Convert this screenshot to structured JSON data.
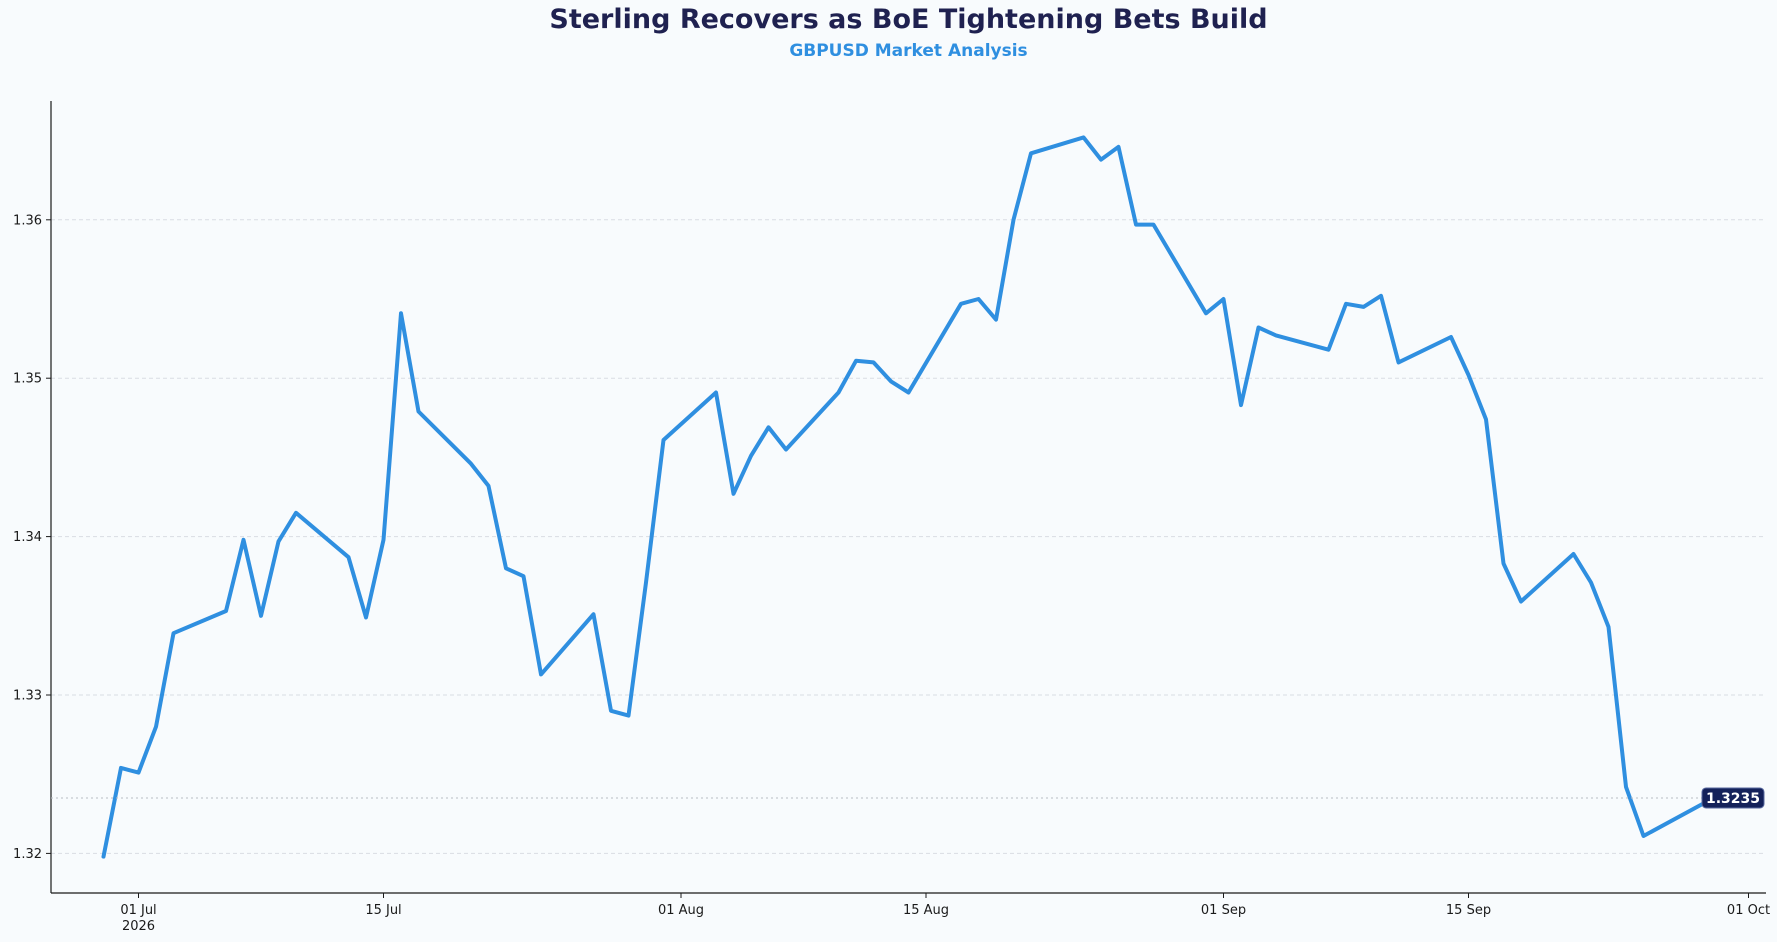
{
  "chart_data": {
    "type": "line",
    "title": "Sterling Recovers as BoE Tightening Bets Build",
    "subtitle": "GBPUSD Market Analysis",
    "xlabel": "",
    "ylabel": "",
    "ylim": [
      1.3175,
      1.3675
    ],
    "xlim": [
      "2026-06-26",
      "2026-10-02"
    ],
    "grid": "horizontal dashed",
    "legend": "none",
    "colors": {
      "line": "#2f8fe0",
      "title": "#1f2150",
      "subtitle": "#2f8fe0",
      "badge": "#14215a",
      "grid": "#d9dde3",
      "background": "#f8fbfd"
    },
    "yticks": [
      {
        "value": 1.32,
        "label": "1.32"
      },
      {
        "value": 1.33,
        "label": "1.33"
      },
      {
        "value": 1.34,
        "label": "1.34"
      },
      {
        "value": 1.35,
        "label": "1.35"
      },
      {
        "value": 1.36,
        "label": "1.36"
      }
    ],
    "xticks": [
      {
        "date": "2026-07-01",
        "label": "01 Jul",
        "sublabel": "2026"
      },
      {
        "date": "2026-07-15",
        "label": "15 Jul",
        "sublabel": ""
      },
      {
        "date": "2026-08-01",
        "label": "01 Aug",
        "sublabel": ""
      },
      {
        "date": "2026-08-15",
        "label": "15 Aug",
        "sublabel": ""
      },
      {
        "date": "2026-09-01",
        "label": "01 Sep",
        "sublabel": ""
      },
      {
        "date": "2026-09-15",
        "label": "15 Sep",
        "sublabel": ""
      },
      {
        "date": "2026-10-01",
        "label": "01 Oct",
        "sublabel": ""
      }
    ],
    "last_value_label": "1.3235",
    "series": [
      {
        "x": [
          "2026-06-29",
          "2026-06-30",
          "2026-07-01",
          "2026-07-02",
          "2026-07-03",
          "2026-07-06",
          "2026-07-07",
          "2026-07-08",
          "2026-07-09",
          "2026-07-10",
          "2026-07-13",
          "2026-07-14",
          "2026-07-15",
          "2026-07-16",
          "2026-07-17",
          "2026-07-20",
          "2026-07-21",
          "2026-07-22",
          "2026-07-23",
          "2026-07-24",
          "2026-07-27",
          "2026-07-28",
          "2026-07-29",
          "2026-07-30",
          "2026-07-31",
          "2026-08-03",
          "2026-08-04",
          "2026-08-05",
          "2026-08-06",
          "2026-08-07",
          "2026-08-10",
          "2026-08-11",
          "2026-08-12",
          "2026-08-13",
          "2026-08-14",
          "2026-08-17",
          "2026-08-18",
          "2026-08-19",
          "2026-08-20",
          "2026-08-21",
          "2026-08-24",
          "2026-08-25",
          "2026-08-26",
          "2026-08-27",
          "2026-08-28",
          "2026-08-31",
          "2026-09-01",
          "2026-09-02",
          "2026-09-03",
          "2026-09-04",
          "2026-09-07",
          "2026-09-08",
          "2026-09-09",
          "2026-09-10",
          "2026-09-11",
          "2026-09-14",
          "2026-09-15",
          "2026-09-16",
          "2026-09-17",
          "2026-09-18",
          "2026-09-21",
          "2026-09-22",
          "2026-09-23",
          "2026-09-24",
          "2026-09-25",
          "2026-09-28",
          "2026-09-29"
        ],
        "values": [
          1.3198,
          1.3254,
          1.3251,
          1.328,
          1.3339,
          1.3353,
          1.3398,
          1.335,
          1.3397,
          1.3415,
          1.3387,
          1.3349,
          1.3398,
          1.3541,
          1.3479,
          1.3446,
          1.3432,
          1.338,
          1.3375,
          1.3313,
          1.3351,
          1.329,
          1.3287,
          1.3371,
          1.3461,
          1.3491,
          1.3427,
          1.3451,
          1.3469,
          1.3455,
          1.3491,
          1.3511,
          1.351,
          1.3498,
          1.3491,
          1.3547,
          1.355,
          1.3537,
          1.36,
          1.3642,
          1.3652,
          1.3638,
          1.3646,
          1.3597,
          1.3597,
          1.3541,
          1.355,
          1.3483,
          1.3532,
          1.3527,
          1.3518,
          1.3547,
          1.3545,
          1.3552,
          1.351,
          1.3526,
          1.3502,
          1.3474,
          1.3383,
          1.3359,
          1.3389,
          1.3371,
          1.3343,
          1.3242,
          1.3211,
          1.3229,
          1.3235
        ]
      }
    ]
  }
}
